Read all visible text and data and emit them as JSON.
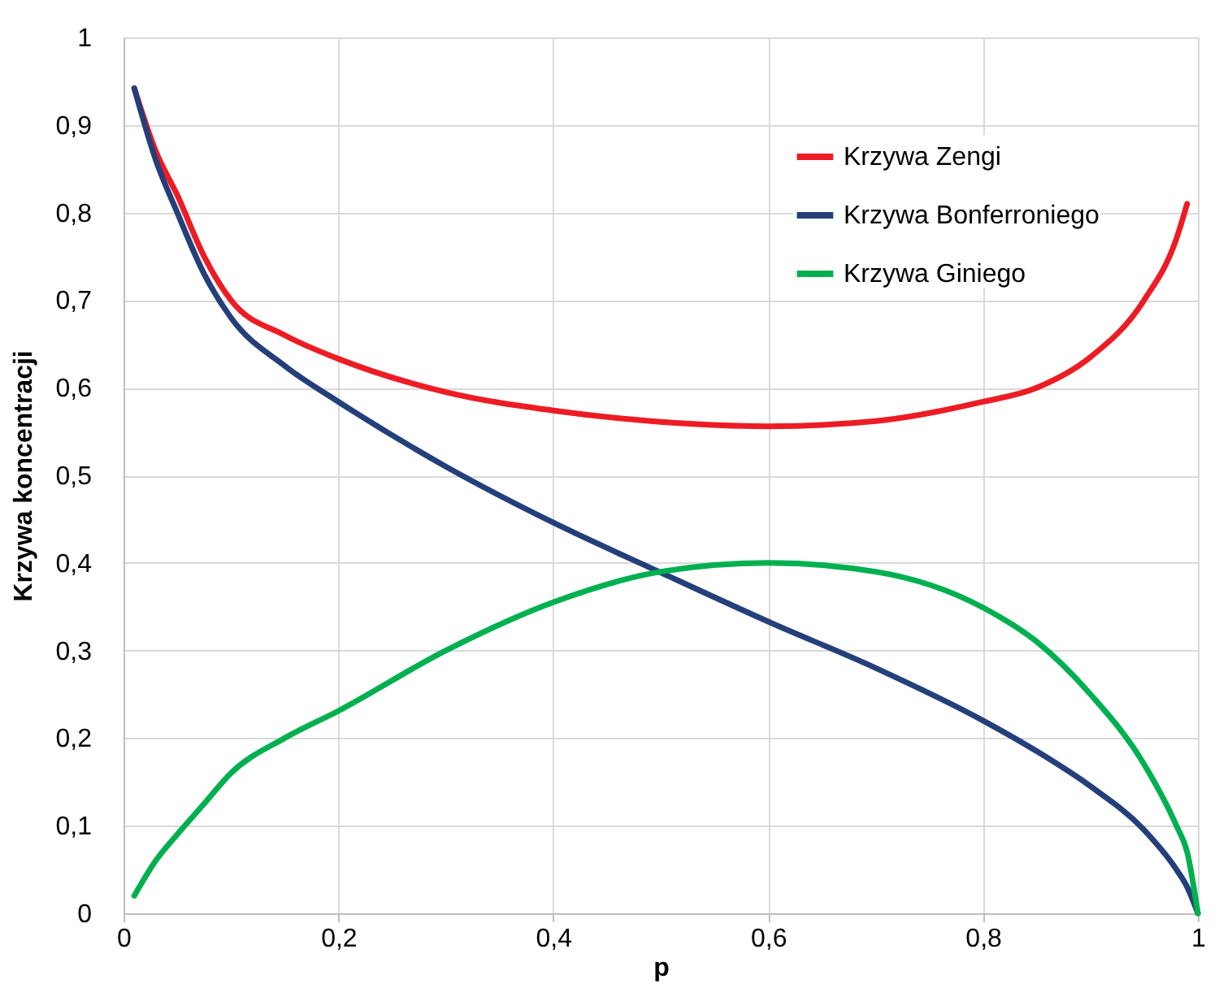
{
  "chart_data": {
    "type": "line",
    "xlabel": "p",
    "ylabel": "Krzywa koncentracji",
    "xlim": [
      0,
      1
    ],
    "ylim": [
      0,
      1
    ],
    "xticks": [
      0,
      {
        "value": 0.2,
        "label": "0,2"
      },
      {
        "value": 0.4,
        "label": "0,4"
      },
      {
        "value": 0.6,
        "label": "0,6"
      },
      {
        "value": 0.8,
        "label": "0,8"
      },
      1
    ],
    "yticks": [
      0,
      {
        "value": 0.1,
        "label": "0,1"
      },
      {
        "value": 0.2,
        "label": "0,2"
      },
      {
        "value": 0.3,
        "label": "0,3"
      },
      {
        "value": 0.4,
        "label": "0,4"
      },
      {
        "value": 0.5,
        "label": "0,5"
      },
      {
        "value": 0.6,
        "label": "0,6"
      },
      {
        "value": 0.7,
        "label": "0,7"
      },
      {
        "value": 0.8,
        "label": "0,8"
      },
      {
        "value": 0.9,
        "label": "0,9"
      },
      1
    ],
    "grid": true,
    "legend": "top right",
    "marker": "none",
    "line_style": "solid",
    "x": [
      0.01,
      0.03,
      0.05,
      0.075,
      0.1,
      0.15,
      0.2,
      0.3,
      0.4,
      0.5,
      0.6,
      0.7,
      0.8,
      0.85,
      0.9,
      0.95,
      0.98,
      0.99,
      1.0
    ],
    "series": [
      {
        "name": "Krzywa Zengi",
        "color": "#ed1c24",
        "values": [
          0.942,
          0.87,
          0.82,
          0.75,
          0.7,
          0.66,
          0.633,
          0.595,
          0.574,
          0.561,
          0.556,
          0.562,
          0.584,
          0.6,
          0.635,
          0.7,
          0.77,
          0.81,
          null
        ]
      },
      {
        "name": "Krzywa Bonferroniego",
        "color": "#243f7a",
        "values": [
          0.942,
          0.86,
          0.8,
          0.73,
          0.68,
          0.625,
          0.584,
          0.51,
          0.446,
          0.389,
          0.333,
          0.28,
          0.22,
          0.185,
          0.145,
          0.095,
          0.05,
          0.03,
          0.0
        ]
      },
      {
        "name": "Krzywa Giniego",
        "color": "#00b050",
        "values": [
          0.02,
          0.06,
          0.09,
          0.125,
          0.16,
          0.2,
          0.231,
          0.3,
          0.355,
          0.39,
          0.4,
          0.39,
          0.349,
          0.31,
          0.25,
          0.17,
          0.1,
          0.07,
          0.0
        ]
      }
    ]
  }
}
